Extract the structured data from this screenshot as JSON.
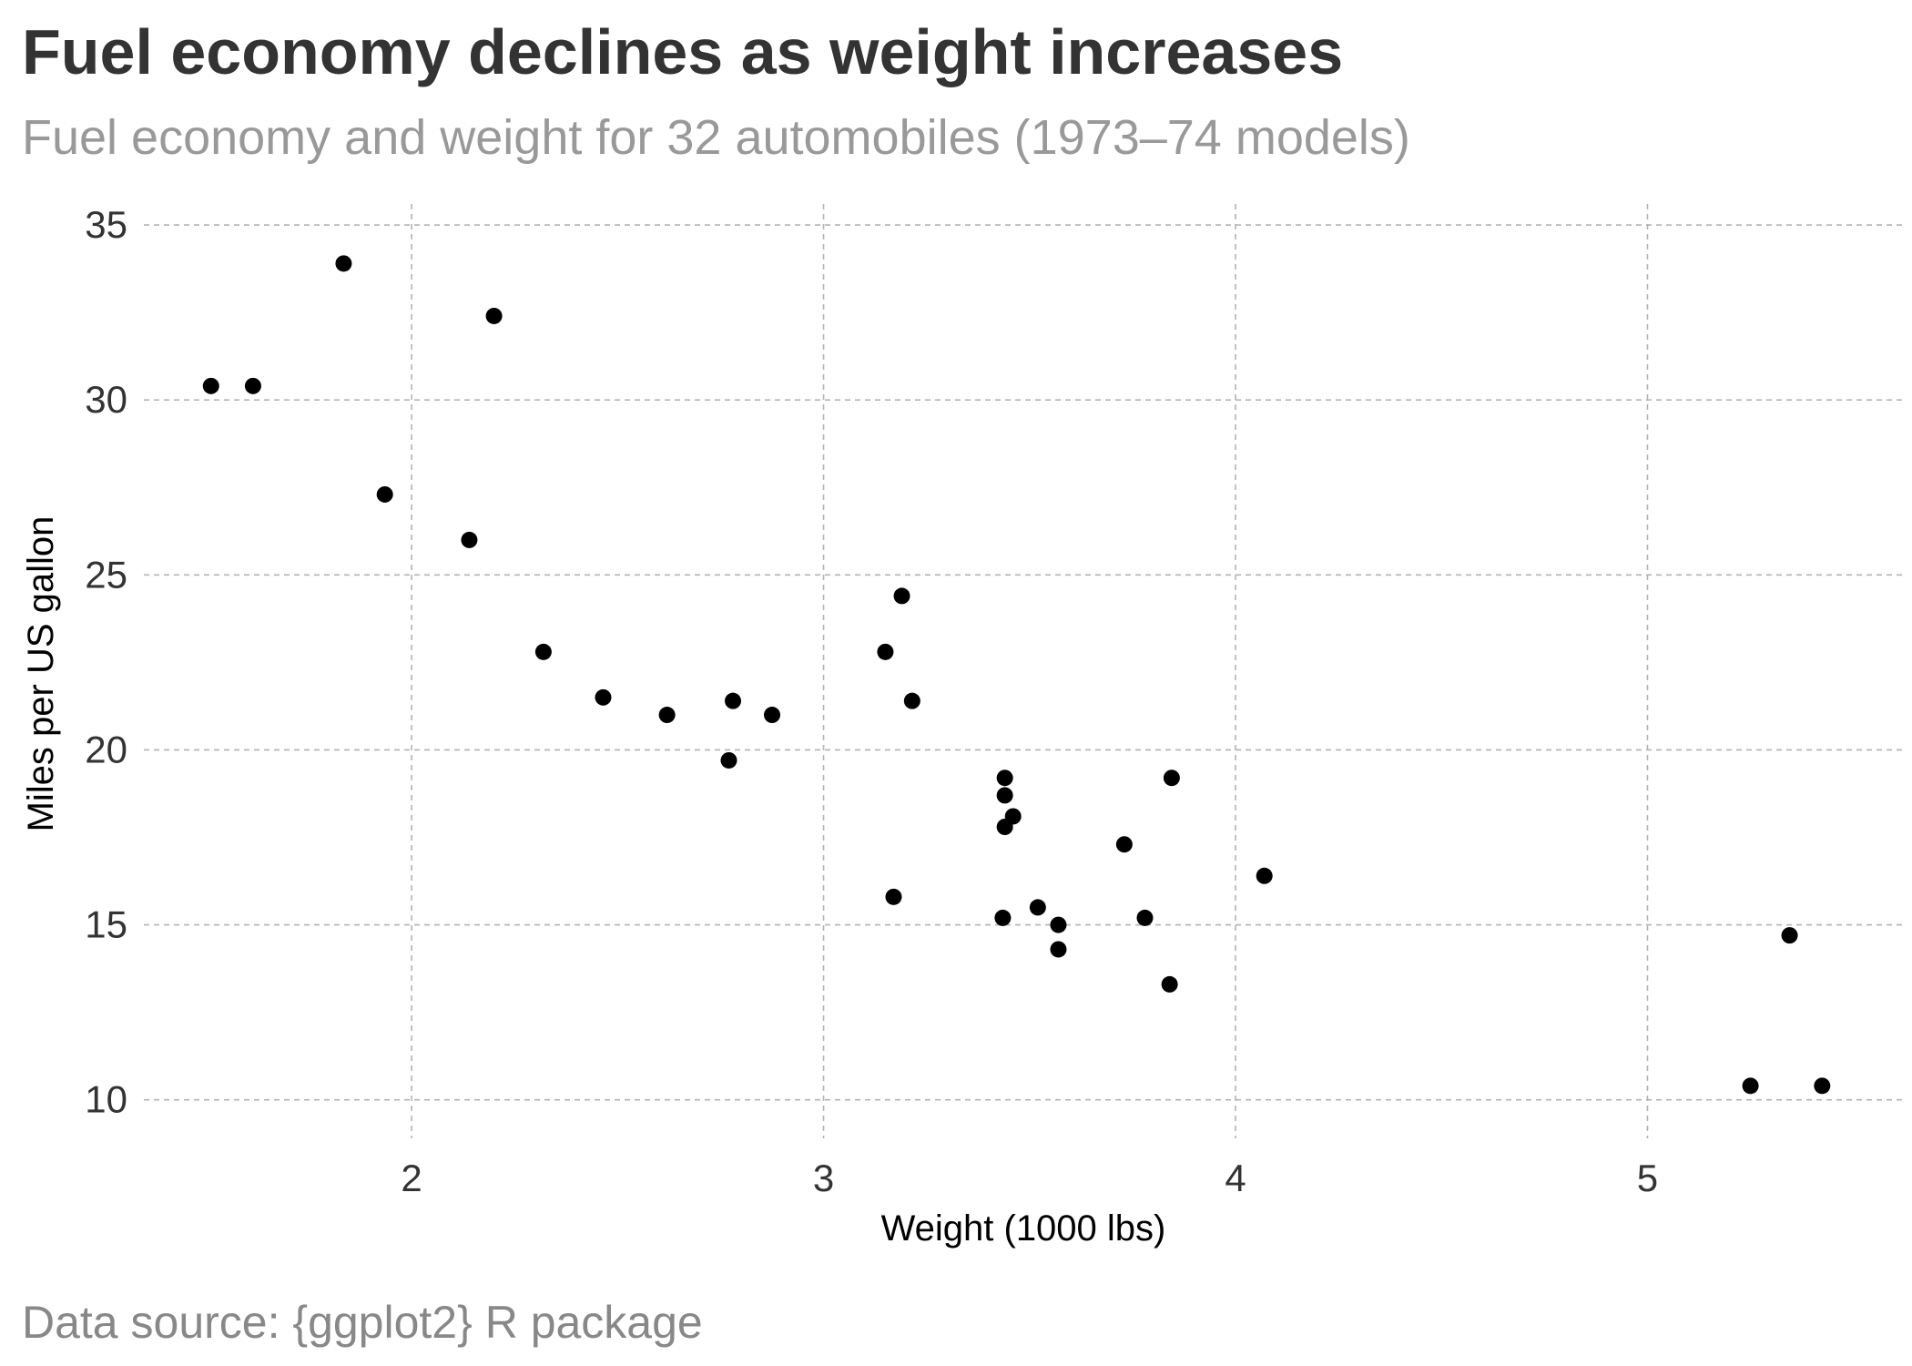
{
  "title": "Fuel economy declines as weight increases",
  "subtitle": "Fuel economy and weight for 32 automobiles (1973–74 models)",
  "caption": "Data source: {ggplot2} R package",
  "colors": {
    "title": "#333333",
    "subtitle": "#999999",
    "caption": "#888888",
    "point": "#000000",
    "grid": "#b3b3b3"
  },
  "chart_data": {
    "type": "scatter",
    "title": "Fuel economy declines as weight increases",
    "subtitle": "Fuel economy and weight for 32 automobiles (1973–74 models)",
    "xlabel": "Weight (1000 lbs)",
    "ylabel": "Miles per US gallon",
    "xlim": [
      1.35,
      5.62
    ],
    "ylim": [
      8.9,
      35.6
    ],
    "x_ticks": [
      2,
      3,
      4,
      5
    ],
    "y_ticks": [
      10,
      15,
      20,
      25,
      30,
      35
    ],
    "grid": true,
    "grid_style": "dashed",
    "legend": "none",
    "series": [
      {
        "x": [
          2.62,
          2.875,
          2.32,
          3.215,
          3.44,
          3.46,
          3.57,
          3.19,
          3.15,
          3.44,
          3.44,
          4.07,
          3.73,
          3.78,
          5.25,
          5.424,
          5.345,
          2.2,
          1.615,
          1.835,
          2.465,
          3.52,
          3.435,
          3.84,
          3.845,
          1.935,
          2.14,
          1.513,
          3.17,
          2.77,
          3.57,
          2.78
        ],
        "y": [
          21.0,
          21.0,
          22.8,
          21.4,
          18.7,
          18.1,
          14.3,
          24.4,
          22.8,
          19.2,
          17.8,
          16.4,
          17.3,
          15.2,
          10.4,
          10.4,
          14.7,
          32.4,
          30.4,
          33.9,
          21.5,
          15.5,
          15.2,
          13.3,
          19.2,
          27.3,
          26.0,
          30.4,
          15.8,
          19.7,
          15.0,
          21.4
        ]
      }
    ]
  }
}
